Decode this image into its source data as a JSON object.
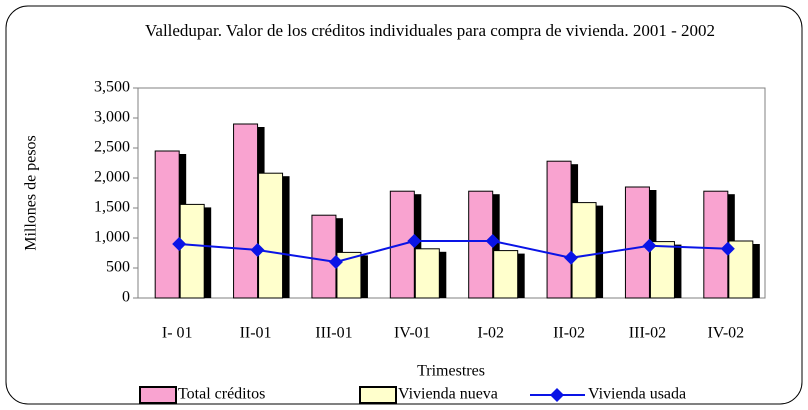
{
  "chart_data": {
    "type": "bar",
    "title": "Valledupar. Valor de los créditos individuales para compra de vivienda. 2001 - 2002",
    "y_label": "Millones de pesos",
    "x_label": "Trimestres",
    "categories": [
      "I- 01",
      "II-01",
      "III-01",
      "IV-01",
      "I-02",
      "II-02",
      "III-02",
      "IV-02"
    ],
    "series": [
      {
        "name": "Total créditos",
        "type": "bar",
        "color": "#f9a3d0",
        "values": [
          2450,
          2900,
          1380,
          1780,
          1780,
          2280,
          1850,
          1780
        ]
      },
      {
        "name": "Vivienda nueva",
        "type": "bar",
        "color": "#ffffcc",
        "values": [
          1560,
          2080,
          760,
          820,
          790,
          1590,
          940,
          950
        ]
      },
      {
        "name": "Vivienda usada",
        "type": "line",
        "color": "#0a14e6",
        "values": [
          900,
          800,
          600,
          950,
          950,
          670,
          870,
          820
        ]
      }
    ],
    "ylim": [
      0,
      3500
    ],
    "yticks": [
      0,
      500,
      {
        "value": 1000,
        "label": "1,000"
      },
      {
        "value": 1500,
        "label": "1,500"
      },
      {
        "value": 2000,
        "label": "2,000"
      },
      {
        "value": 2500,
        "label": "2,500"
      },
      {
        "value": 3000,
        "label": "3,000"
      },
      {
        "value": 3500,
        "label": "3,500"
      }
    ],
    "grid": false,
    "legend": "bottom"
  }
}
